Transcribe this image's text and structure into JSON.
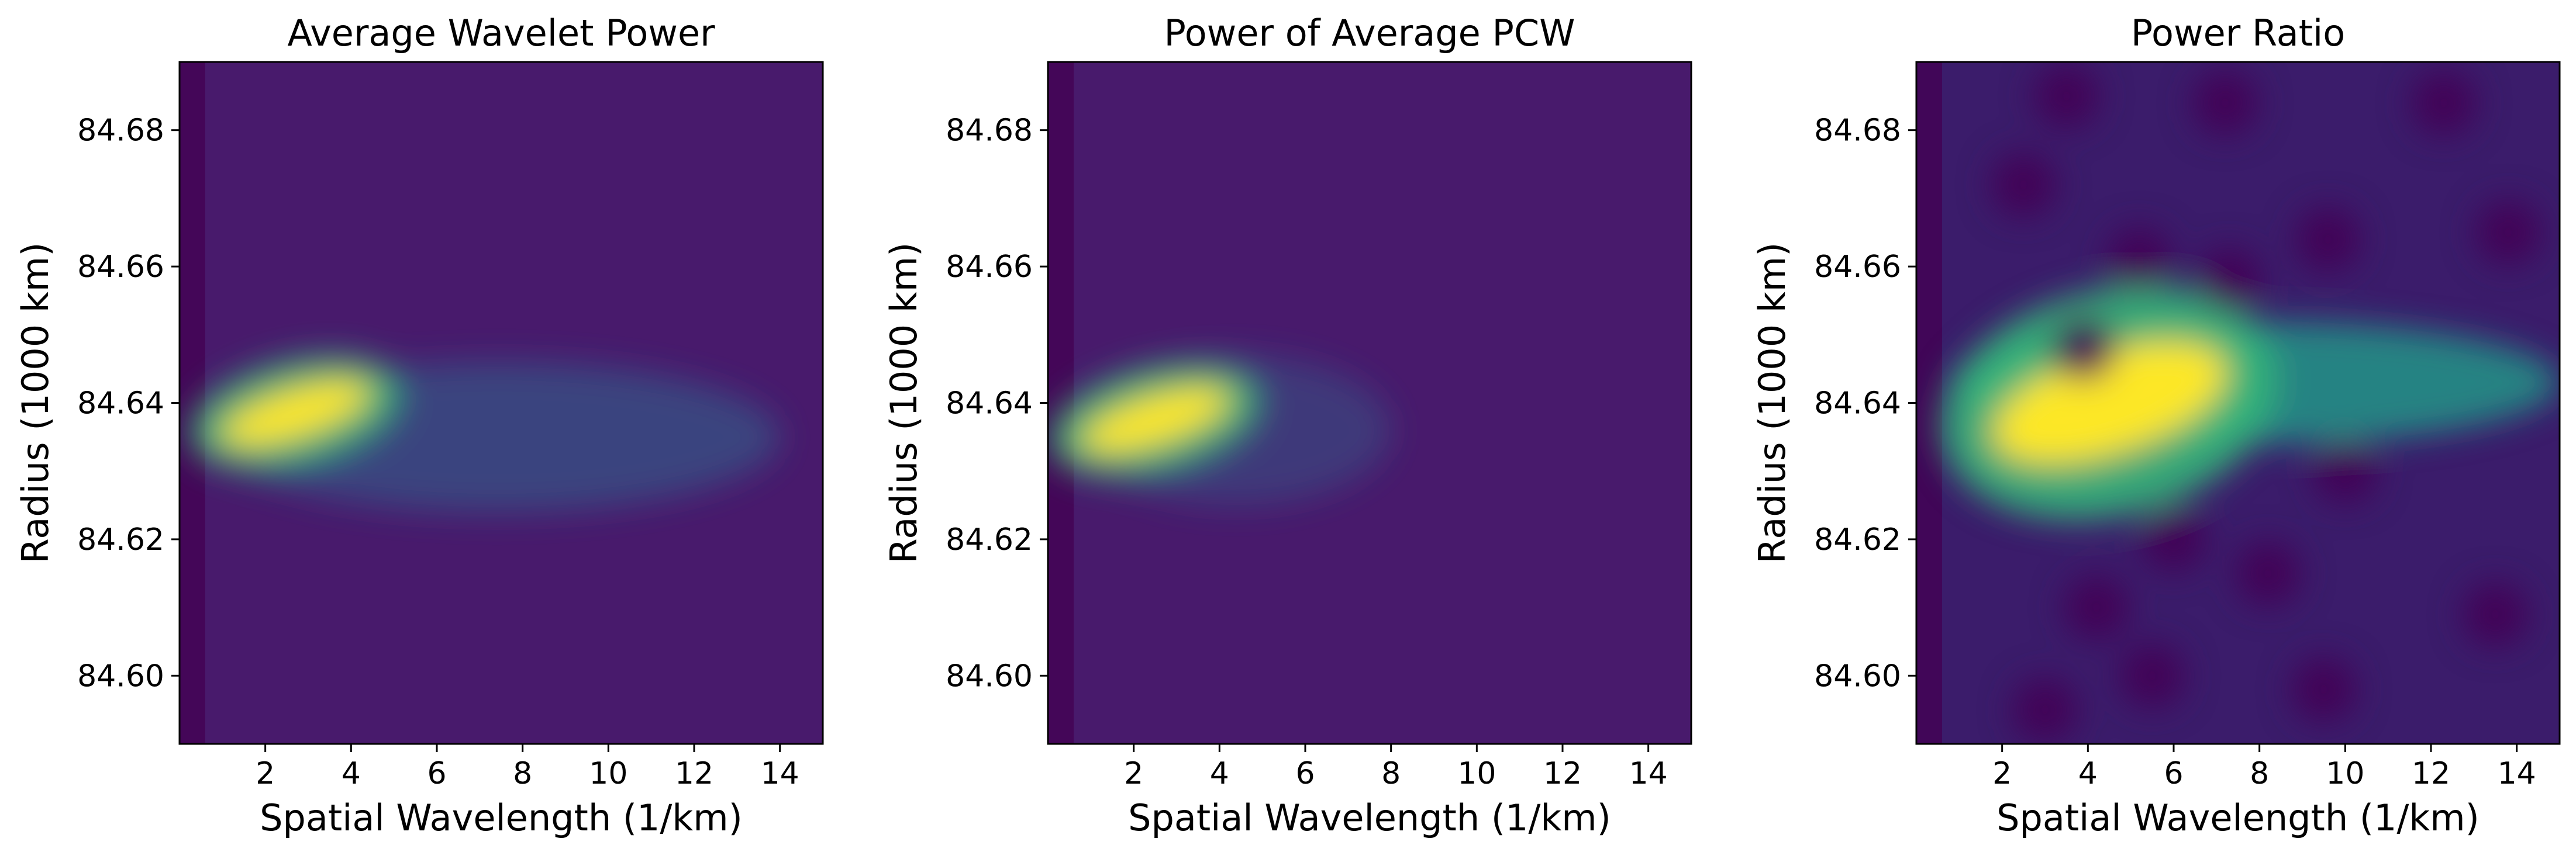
{
  "chart_data": [
    {
      "type": "heatmap",
      "title": "Average Wavelet Power",
      "xlabel": "Spatial Wavelength (1/km)",
      "ylabel": "Radius (1000 km)",
      "xlim": [
        0,
        15
      ],
      "ylim": [
        84.59,
        84.69
      ],
      "xticks": [
        2,
        4,
        6,
        8,
        10,
        12,
        14
      ],
      "yticks": [
        84.6,
        84.62,
        84.64,
        84.66,
        84.68
      ],
      "ytick_labels": [
        "84.60",
        "84.62",
        "84.64",
        "84.66",
        "84.68"
      ],
      "colormap": "viridis",
      "features": [
        {
          "kind": "peak",
          "x": 2.7,
          "y": 84.6385,
          "intensity": 1.0
        },
        {
          "kind": "band",
          "x_from": 0.8,
          "x_to": 14,
          "y": 84.635,
          "intensity": 0.35
        }
      ]
    },
    {
      "type": "heatmap",
      "title": "Power of Average PCW",
      "xlabel": "Spatial Wavelength (1/km)",
      "ylabel": "Radius (1000 km)",
      "xlim": [
        0,
        15
      ],
      "ylim": [
        84.59,
        84.69
      ],
      "xticks": [
        2,
        4,
        6,
        8,
        10,
        12,
        14
      ],
      "yticks": [
        84.6,
        84.62,
        84.64,
        84.66,
        84.68
      ],
      "ytick_labels": [
        "84.60",
        "84.62",
        "84.64",
        "84.66",
        "84.68"
      ],
      "colormap": "viridis",
      "features": [
        {
          "kind": "peak",
          "x": 2.5,
          "y": 84.6375,
          "intensity": 1.0
        },
        {
          "kind": "band",
          "x_from": 0.8,
          "x_to": 8,
          "y": 84.636,
          "intensity": 0.2
        }
      ]
    },
    {
      "type": "heatmap",
      "title": "Power Ratio",
      "xlabel": "Spatial Wavelength (1/km)",
      "ylabel": "Radius (1000 km)",
      "xlim": [
        0,
        15
      ],
      "ylim": [
        84.59,
        84.69
      ],
      "xticks": [
        2,
        4,
        6,
        8,
        10,
        12,
        14
      ],
      "yticks": [
        84.6,
        84.62,
        84.64,
        84.66,
        84.68
      ],
      "ytick_labels": [
        "84.60",
        "84.62",
        "84.64",
        "84.66",
        "84.68"
      ],
      "colormap": "viridis",
      "features": [
        {
          "kind": "peak",
          "x": 4.5,
          "y": 84.64,
          "intensity": 1.0
        },
        {
          "kind": "band",
          "x_from": 0.8,
          "x_to": 15,
          "y": 84.643,
          "intensity": 0.6
        }
      ]
    }
  ]
}
